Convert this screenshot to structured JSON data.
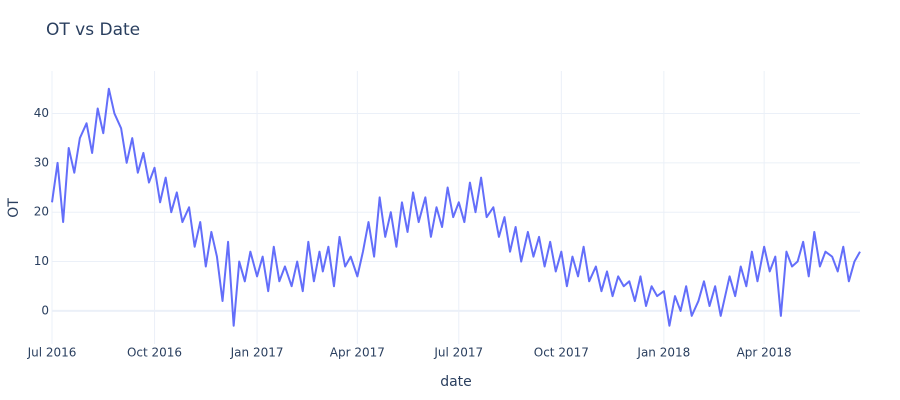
{
  "chart_data": {
    "type": "line",
    "title": "OT vs Date",
    "xlabel": "date",
    "ylabel": "OT",
    "x": [
      "2016-07-01",
      "2016-07-06",
      "2016-07-11",
      "2016-07-16",
      "2016-07-21",
      "2016-07-26",
      "2016-08-01",
      "2016-08-06",
      "2016-08-11",
      "2016-08-16",
      "2016-08-21",
      "2016-08-26",
      "2016-09-01",
      "2016-09-06",
      "2016-09-11",
      "2016-09-16",
      "2016-09-21",
      "2016-09-26",
      "2016-10-01",
      "2016-10-06",
      "2016-10-11",
      "2016-10-16",
      "2016-10-21",
      "2016-10-26",
      "2016-11-01",
      "2016-11-06",
      "2016-11-11",
      "2016-11-16",
      "2016-11-21",
      "2016-11-26",
      "2016-12-01",
      "2016-12-06",
      "2016-12-11",
      "2016-12-16",
      "2016-12-21",
      "2016-12-26",
      "2017-01-01",
      "2017-01-06",
      "2017-01-11",
      "2017-01-16",
      "2017-01-21",
      "2017-01-26",
      "2017-02-01",
      "2017-02-06",
      "2017-02-11",
      "2017-02-16",
      "2017-02-21",
      "2017-02-26",
      "2017-03-01",
      "2017-03-06",
      "2017-03-11",
      "2017-03-16",
      "2017-03-21",
      "2017-03-26",
      "2017-04-01",
      "2017-04-06",
      "2017-04-11",
      "2017-04-16",
      "2017-04-21",
      "2017-04-26",
      "2017-05-01",
      "2017-05-06",
      "2017-05-11",
      "2017-05-16",
      "2017-05-21",
      "2017-05-26",
      "2017-06-01",
      "2017-06-06",
      "2017-06-11",
      "2017-06-16",
      "2017-06-21",
      "2017-06-26",
      "2017-07-01",
      "2017-07-06",
      "2017-07-11",
      "2017-07-16",
      "2017-07-21",
      "2017-07-26",
      "2017-08-01",
      "2017-08-06",
      "2017-08-11",
      "2017-08-16",
      "2017-08-21",
      "2017-08-26",
      "2017-09-01",
      "2017-09-06",
      "2017-09-11",
      "2017-09-16",
      "2017-09-21",
      "2017-09-26",
      "2017-10-01",
      "2017-10-06",
      "2017-10-11",
      "2017-10-16",
      "2017-10-21",
      "2017-10-26",
      "2017-11-01",
      "2017-11-06",
      "2017-11-11",
      "2017-11-16",
      "2017-11-21",
      "2017-11-26",
      "2017-12-01",
      "2017-12-06",
      "2017-12-11",
      "2017-12-16",
      "2017-12-21",
      "2017-12-26",
      "2018-01-01",
      "2018-01-06",
      "2018-01-11",
      "2018-01-16",
      "2018-01-21",
      "2018-01-26",
      "2018-02-01",
      "2018-02-06",
      "2018-02-11",
      "2018-02-16",
      "2018-02-21",
      "2018-02-26",
      "2018-03-01",
      "2018-03-06",
      "2018-03-11",
      "2018-03-16",
      "2018-03-21",
      "2018-03-26",
      "2018-04-01",
      "2018-04-06",
      "2018-04-11",
      "2018-04-16",
      "2018-04-21",
      "2018-04-26",
      "2018-05-01",
      "2018-05-06",
      "2018-05-11",
      "2018-05-16",
      "2018-05-21",
      "2018-05-26",
      "2018-06-01",
      "2018-06-06",
      "2018-06-11",
      "2018-06-16",
      "2018-06-21",
      "2018-06-26"
    ],
    "series": [
      {
        "name": "OT",
        "color": "#636efa",
        "values": [
          22,
          30,
          18,
          33,
          28,
          35,
          38,
          32,
          41,
          36,
          45,
          40,
          37,
          30,
          35,
          28,
          32,
          26,
          29,
          22,
          27,
          20,
          24,
          18,
          21,
          13,
          18,
          9,
          16,
          11,
          2,
          14,
          -3,
          10,
          6,
          12,
          7,
          11,
          4,
          13,
          6,
          9,
          5,
          10,
          4,
          14,
          6,
          12,
          8,
          13,
          5,
          15,
          9,
          11,
          7,
          12,
          18,
          11,
          23,
          15,
          20,
          13,
          22,
          16,
          24,
          18,
          23,
          15,
          21,
          17,
          25,
          19,
          22,
          18,
          26,
          20,
          27,
          19,
          21,
          15,
          19,
          12,
          17,
          10,
          16,
          11,
          15,
          9,
          14,
          8,
          12,
          5,
          11,
          7,
          13,
          6,
          9,
          4,
          8,
          3,
          7,
          5,
          6,
          2,
          7,
          1,
          5,
          3,
          4,
          -3,
          3,
          0,
          5,
          -1,
          2,
          6,
          1,
          5,
          -1,
          4,
          7,
          3,
          9,
          5,
          12,
          6,
          13,
          8,
          11,
          -1,
          12,
          9,
          10,
          14,
          7,
          16,
          9,
          12,
          11,
          8,
          13,
          6,
          10,
          12
        ]
      }
    ],
    "xlim": [
      "2016-07-01",
      "2018-06-26"
    ],
    "xticks": [
      {
        "value": "2016-07-01",
        "label": "Jul 2016"
      },
      {
        "value": "2016-10-01",
        "label": "Oct 2016"
      },
      {
        "value": "2017-01-01",
        "label": "Jan 2017"
      },
      {
        "value": "2017-04-01",
        "label": "Apr 2017"
      },
      {
        "value": "2017-07-01",
        "label": "Jul 2017"
      },
      {
        "value": "2017-10-01",
        "label": "Oct 2017"
      },
      {
        "value": "2018-01-01",
        "label": "Jan 2018"
      },
      {
        "value": "2018-04-01",
        "label": "Apr 2018"
      }
    ],
    "ylim": [
      -6.7,
      48.6
    ],
    "yticks": [
      0,
      10,
      20,
      30,
      40
    ],
    "grid": true
  }
}
